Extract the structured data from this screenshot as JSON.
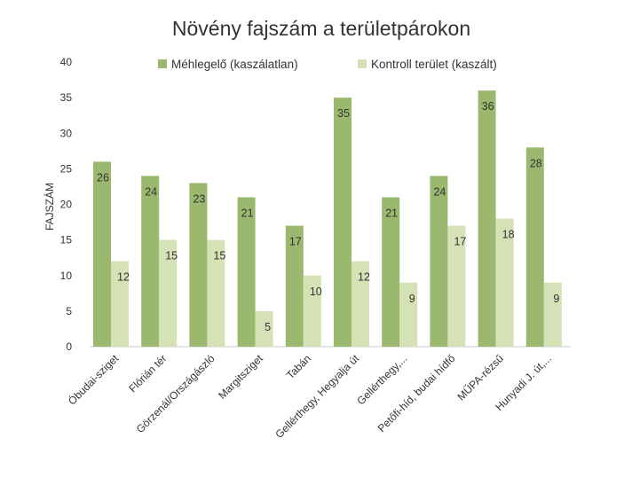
{
  "chart_data": {
    "type": "bar",
    "title": "Növény fajszám a területpárokon",
    "ylabel": "FAJSZÁM",
    "xlabel": "",
    "ylim": [
      0,
      40
    ],
    "yticks": [
      0,
      5,
      10,
      15,
      20,
      25,
      30,
      35,
      40
    ],
    "grid": false,
    "legend_position": "top",
    "categories": [
      "Óbudai-sziget",
      "Flórián tér",
      "Görzenál/Országászló",
      "Margitsziget",
      "Tabán",
      "Gellérthegy, Hegyalja út",
      "Gellérthegy,...",
      "Petőfi-híd, budai hídfő",
      "MŰPA-rézsű",
      "Hunyadi J. út,..."
    ],
    "series": [
      {
        "name": "Méhlegelő (kaszálatlan)",
        "color": "#9bb86f",
        "values": [
          26,
          24,
          23,
          21,
          17,
          35,
          21,
          24,
          36,
          28
        ]
      },
      {
        "name": "Kontroll terület (kaszált)",
        "color": "#d4e2b6",
        "values": [
          12,
          15,
          15,
          5,
          10,
          12,
          9,
          17,
          18,
          9
        ]
      }
    ]
  }
}
